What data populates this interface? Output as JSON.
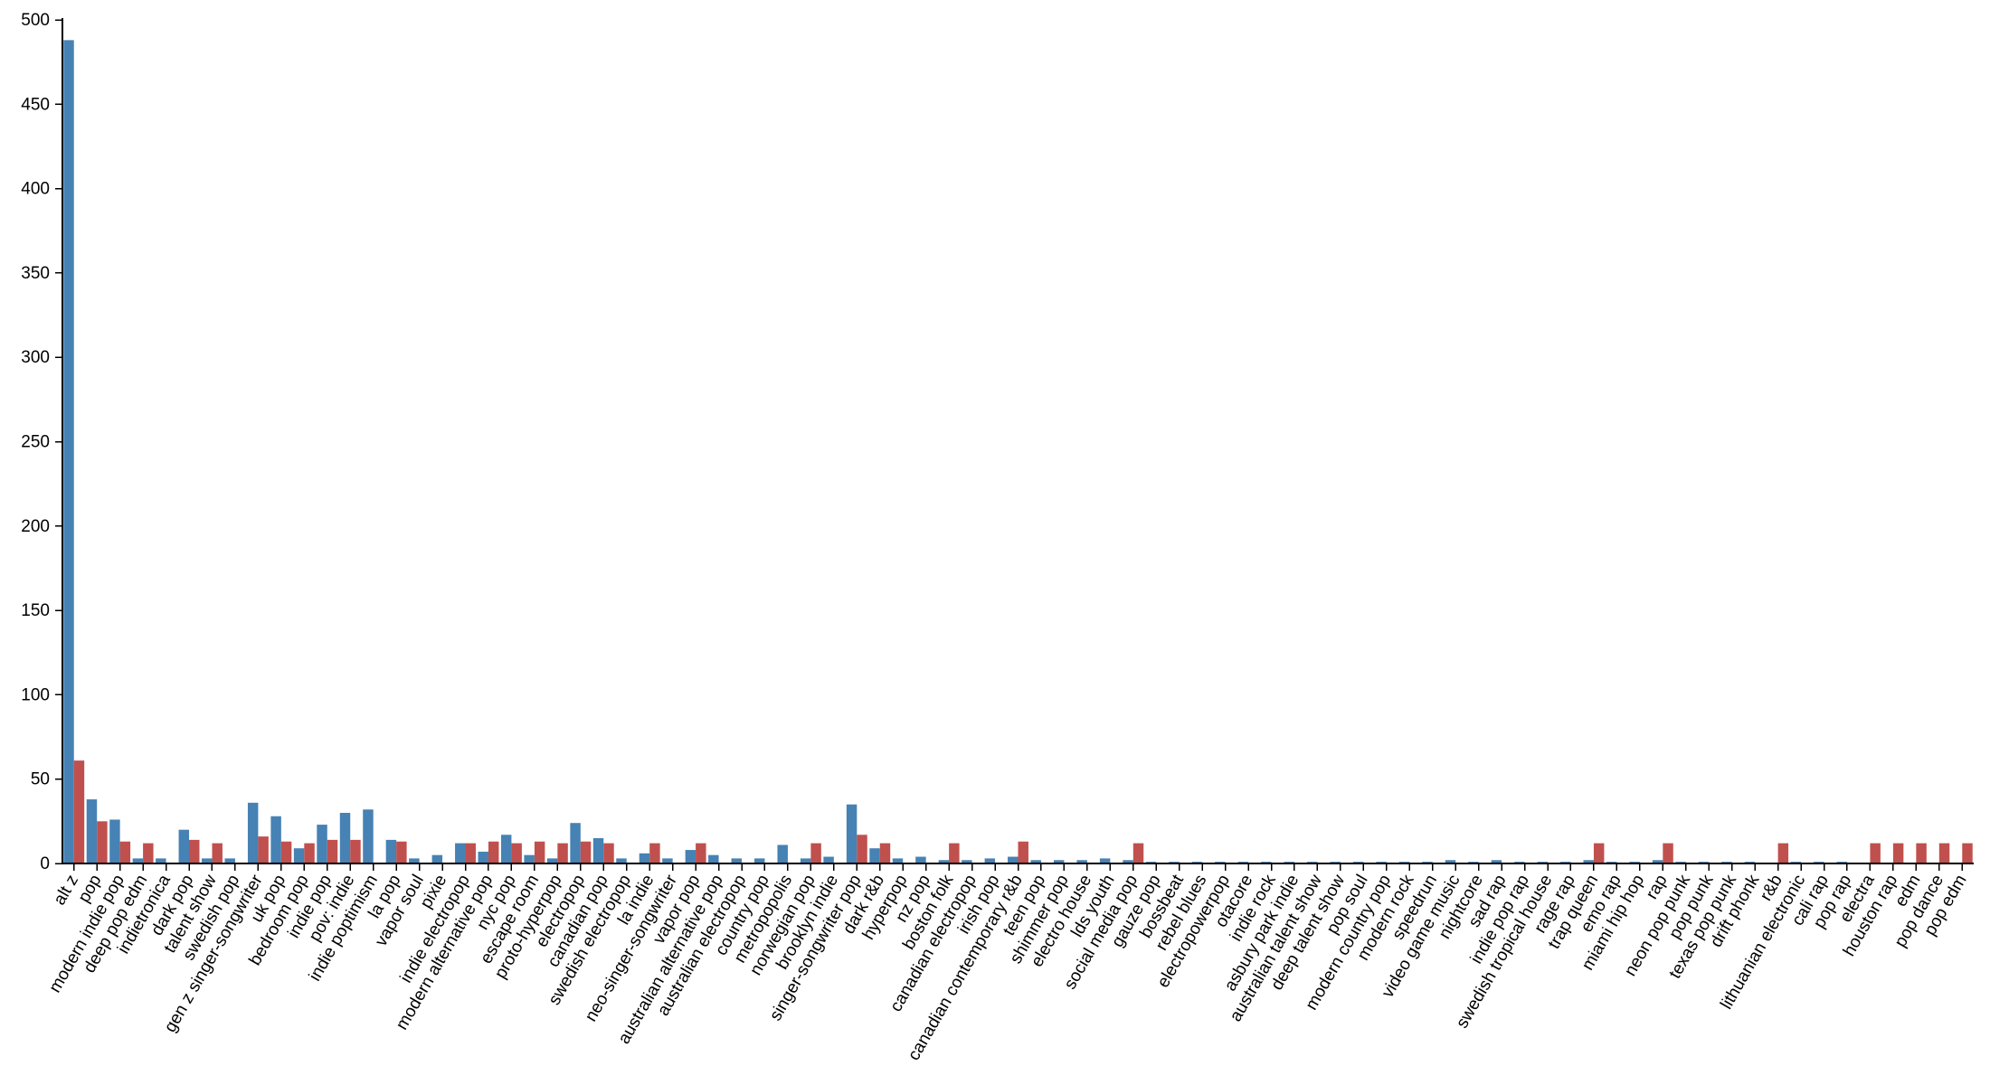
{
  "colors": {
    "series_a": "#4682b4",
    "series_b": "#c0504d",
    "axis": "#000000"
  },
  "chart_data": {
    "type": "bar",
    "title": "",
    "xlabel": "",
    "ylabel": "",
    "ylim": [
      0,
      500
    ],
    "yticks": [
      0,
      50,
      100,
      150,
      200,
      250,
      300,
      350,
      400,
      450,
      500
    ],
    "grid": false,
    "legend": "none",
    "categories": [
      "alt z",
      "pop",
      "modern indie pop",
      "deep pop edm",
      "indietronica",
      "dark pop",
      "talent show",
      "swedish pop",
      "gen z singer-songwriter",
      "uk pop",
      "bedroom pop",
      "indie pop",
      "pov: indie",
      "indie poptimism",
      "la pop",
      "vapor soul",
      "pixie",
      "indie electropop",
      "modern alternative pop",
      "nyc pop",
      "escape room",
      "proto-hyperpop",
      "electropop",
      "canadian pop",
      "swedish electropop",
      "la indie",
      "neo-singer-songwriter",
      "vapor pop",
      "australian alternative pop",
      "australian electropop",
      "country pop",
      "metropopolis",
      "norwegian pop",
      "brooklyn indie",
      "singer-songwriter pop",
      "dark r&b",
      "hyperpop",
      "nz pop",
      "boston folk",
      "canadian electropop",
      "irish pop",
      "canadian contemporary r&b",
      "teen pop",
      "shimmer pop",
      "electro house",
      "lds youth",
      "social media pop",
      "gauze pop",
      "bossbeat",
      "rebel blues",
      "electropowerpop",
      "otacore",
      "indie rock",
      "asbury park indie",
      "australian talent show",
      "deep talent show",
      "pop soul",
      "modern country pop",
      "modern rock",
      "speedrun",
      "video game music",
      "nightcore",
      "sad rap",
      "indie pop rap",
      "swedish tropical house",
      "rage rap",
      "trap queen",
      "emo rap",
      "miami hip hop",
      "rap",
      "neon pop punk",
      "pop punk",
      "texas pop punk",
      "drift phonk",
      "r&b",
      "lithuanian electronic",
      "cali rap",
      "pop rap",
      "electra",
      "houston rap",
      "edm",
      "pop dance",
      "pop edm"
    ],
    "series": [
      {
        "color": "#4682b4",
        "values": [
          488,
          38,
          26,
          3,
          3,
          20,
          3,
          3,
          36,
          28,
          9,
          23,
          30,
          32,
          14,
          3,
          5,
          12,
          7,
          17,
          5,
          3,
          24,
          15,
          3,
          6,
          3,
          8,
          5,
          3,
          3,
          11,
          3,
          4,
          35,
          9,
          3,
          4,
          2,
          2,
          3,
          4,
          2,
          2,
          2,
          3,
          2,
          1,
          1,
          1,
          1,
          1,
          1,
          1,
          1,
          1,
          1,
          1,
          1,
          1,
          2,
          1,
          2,
          1,
          1,
          1,
          2,
          1,
          1,
          2,
          1,
          1,
          1,
          1,
          0,
          1,
          1,
          1,
          0,
          0,
          0,
          0,
          0
        ]
      },
      {
        "color": "#c0504d",
        "values": [
          61,
          25,
          13,
          12,
          0,
          14,
          12,
          0,
          16,
          13,
          12,
          14,
          14,
          0,
          13,
          0,
          0,
          12,
          13,
          12,
          13,
          12,
          13,
          12,
          0,
          12,
          0,
          12,
          0,
          0,
          0,
          0,
          12,
          0,
          17,
          12,
          0,
          0,
          12,
          0,
          0,
          13,
          0,
          0,
          0,
          0,
          12,
          0,
          0,
          0,
          0,
          0,
          0,
          0,
          0,
          0,
          0,
          0,
          0,
          0,
          0,
          0,
          0,
          0,
          0,
          0,
          12,
          0,
          0,
          12,
          0,
          0,
          0,
          0,
          12,
          0,
          0,
          0,
          12,
          12,
          12,
          12,
          12
        ]
      }
    ]
  }
}
